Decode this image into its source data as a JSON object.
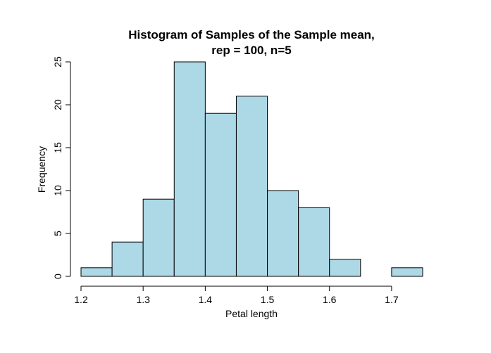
{
  "chart_data": {
    "type": "bar",
    "title_line1": "Histogram of Samples of the Sample mean,",
    "title_line2": "rep = 100, n=5",
    "xlabel": "Petal length",
    "ylabel": "Frequency",
    "bins": [
      {
        "start": 1.2,
        "end": 1.25,
        "count": 1
      },
      {
        "start": 1.25,
        "end": 1.3,
        "count": 4
      },
      {
        "start": 1.3,
        "end": 1.35,
        "count": 9
      },
      {
        "start": 1.35,
        "end": 1.4,
        "count": 25
      },
      {
        "start": 1.4,
        "end": 1.45,
        "count": 19
      },
      {
        "start": 1.45,
        "end": 1.5,
        "count": 21
      },
      {
        "start": 1.5,
        "end": 1.55,
        "count": 10
      },
      {
        "start": 1.55,
        "end": 1.6,
        "count": 8
      },
      {
        "start": 1.6,
        "end": 1.65,
        "count": 2
      },
      {
        "start": 1.65,
        "end": 1.7,
        "count": 0
      },
      {
        "start": 1.7,
        "end": 1.75,
        "count": 1
      }
    ],
    "xlim": [
      1.2,
      1.75
    ],
    "ylim": [
      0,
      25
    ],
    "x_ticks": [
      "1.2",
      "1.3",
      "1.4",
      "1.5",
      "1.6",
      "1.7"
    ],
    "y_ticks": [
      "0",
      "5",
      "10",
      "15",
      "20",
      "25"
    ],
    "bar_color": "#add8e6",
    "grid": false,
    "legend": "none"
  }
}
